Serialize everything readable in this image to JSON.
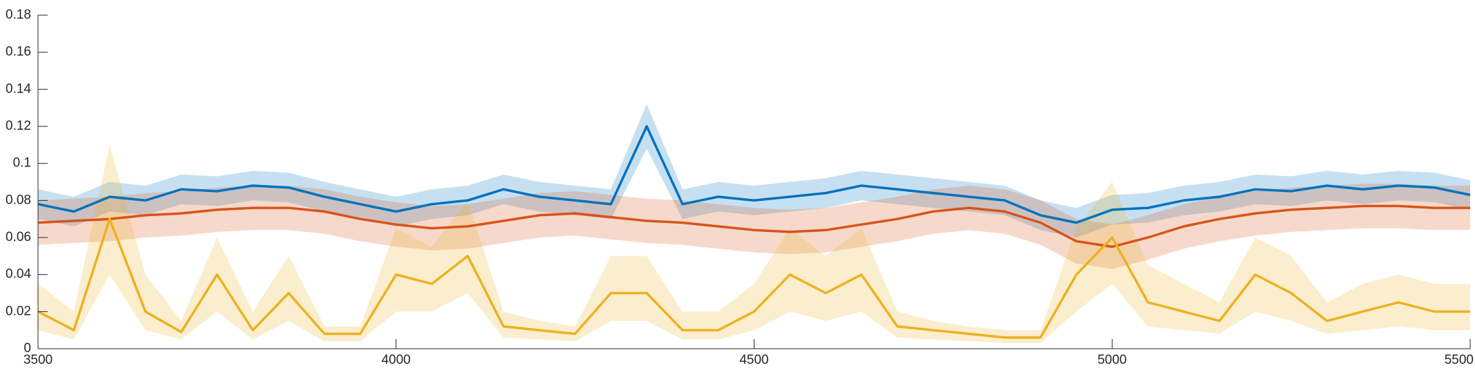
{
  "chart_data": {
    "type": "line",
    "x": [
      3500,
      3550,
      3600,
      3650,
      3700,
      3750,
      3800,
      3850,
      3900,
      3950,
      4000,
      4050,
      4100,
      4150,
      4200,
      4250,
      4300,
      4350,
      4400,
      4450,
      4500,
      4550,
      4600,
      4650,
      4700,
      4750,
      4800,
      4850,
      4900,
      4950,
      5000,
      5050,
      5100,
      5150,
      5200,
      5250,
      5300,
      5350,
      5400,
      5450,
      5500
    ],
    "xlim": [
      3500,
      5500
    ],
    "xticks": [
      3500,
      4000,
      4500,
      5000,
      5500
    ],
    "ylim": [
      0,
      0.18
    ],
    "yticks": [
      0,
      0.02,
      0.04,
      0.06,
      0.08,
      0.1,
      0.12,
      0.14,
      0.16,
      0.18
    ],
    "grid": false,
    "series": [
      {
        "color": "#0072bd",
        "values": [
          0.078,
          0.074,
          0.082,
          0.08,
          0.086,
          0.085,
          0.088,
          0.087,
          0.082,
          0.078,
          0.074,
          0.078,
          0.08,
          0.086,
          0.082,
          0.08,
          0.078,
          0.12,
          0.078,
          0.082,
          0.08,
          0.082,
          0.084,
          0.088,
          0.086,
          0.084,
          0.082,
          0.08,
          0.072,
          0.068,
          0.075,
          0.076,
          0.08,
          0.082,
          0.086,
          0.085,
          0.088,
          0.086,
          0.088,
          0.087,
          0.083
        ],
        "lower": [
          0.07,
          0.066,
          0.074,
          0.072,
          0.078,
          0.077,
          0.08,
          0.079,
          0.074,
          0.07,
          0.066,
          0.07,
          0.072,
          0.078,
          0.074,
          0.072,
          0.07,
          0.108,
          0.07,
          0.074,
          0.072,
          0.074,
          0.076,
          0.08,
          0.078,
          0.076,
          0.074,
          0.072,
          0.064,
          0.06,
          0.067,
          0.068,
          0.072,
          0.074,
          0.078,
          0.077,
          0.08,
          0.078,
          0.08,
          0.079,
          0.075
        ],
        "upper": [
          0.086,
          0.082,
          0.09,
          0.088,
          0.094,
          0.093,
          0.096,
          0.095,
          0.09,
          0.086,
          0.082,
          0.086,
          0.088,
          0.094,
          0.09,
          0.088,
          0.086,
          0.132,
          0.086,
          0.09,
          0.088,
          0.09,
          0.092,
          0.096,
          0.094,
          0.092,
          0.09,
          0.088,
          0.08,
          0.076,
          0.083,
          0.084,
          0.088,
          0.09,
          0.094,
          0.093,
          0.096,
          0.094,
          0.096,
          0.095,
          0.091
        ]
      },
      {
        "color": "#d95319",
        "values": [
          0.068,
          0.069,
          0.07,
          0.072,
          0.073,
          0.075,
          0.076,
          0.076,
          0.074,
          0.07,
          0.067,
          0.065,
          0.066,
          0.069,
          0.072,
          0.073,
          0.071,
          0.069,
          0.068,
          0.066,
          0.064,
          0.063,
          0.064,
          0.067,
          0.07,
          0.074,
          0.076,
          0.074,
          0.068,
          0.058,
          0.055,
          0.06,
          0.066,
          0.07,
          0.073,
          0.075,
          0.076,
          0.077,
          0.077,
          0.076,
          0.076
        ],
        "lower": [
          0.056,
          0.057,
          0.058,
          0.06,
          0.061,
          0.063,
          0.064,
          0.064,
          0.062,
          0.058,
          0.055,
          0.053,
          0.054,
          0.057,
          0.06,
          0.061,
          0.059,
          0.057,
          0.056,
          0.054,
          0.052,
          0.051,
          0.052,
          0.055,
          0.058,
          0.062,
          0.064,
          0.062,
          0.056,
          0.046,
          0.043,
          0.048,
          0.054,
          0.058,
          0.061,
          0.063,
          0.064,
          0.065,
          0.065,
          0.064,
          0.064
        ],
        "upper": [
          0.08,
          0.081,
          0.082,
          0.084,
          0.085,
          0.087,
          0.088,
          0.088,
          0.086,
          0.082,
          0.079,
          0.077,
          0.078,
          0.081,
          0.084,
          0.085,
          0.083,
          0.081,
          0.08,
          0.078,
          0.076,
          0.075,
          0.076,
          0.079,
          0.082,
          0.086,
          0.088,
          0.086,
          0.08,
          0.07,
          0.067,
          0.072,
          0.078,
          0.082,
          0.085,
          0.087,
          0.088,
          0.089,
          0.089,
          0.088,
          0.088
        ]
      },
      {
        "color": "#edb120",
        "values": [
          0.02,
          0.01,
          0.07,
          0.02,
          0.009,
          0.04,
          0.01,
          0.03,
          0.008,
          0.008,
          0.04,
          0.035,
          0.05,
          0.012,
          0.01,
          0.008,
          0.03,
          0.03,
          0.01,
          0.01,
          0.02,
          0.04,
          0.03,
          0.04,
          0.012,
          0.01,
          0.008,
          0.006,
          0.006,
          0.04,
          0.06,
          0.025,
          0.02,
          0.015,
          0.04,
          0.03,
          0.015,
          0.02,
          0.025,
          0.02,
          0.02
        ],
        "lower": [
          0.01,
          0.005,
          0.04,
          0.01,
          0.005,
          0.02,
          0.005,
          0.015,
          0.004,
          0.004,
          0.02,
          0.02,
          0.03,
          0.006,
          0.005,
          0.004,
          0.015,
          0.015,
          0.005,
          0.005,
          0.01,
          0.02,
          0.015,
          0.02,
          0.006,
          0.005,
          0.004,
          0.003,
          0.003,
          0.02,
          0.035,
          0.012,
          0.01,
          0.008,
          0.02,
          0.015,
          0.008,
          0.01,
          0.012,
          0.01,
          0.01
        ],
        "upper": [
          0.035,
          0.02,
          0.11,
          0.04,
          0.015,
          0.06,
          0.02,
          0.05,
          0.012,
          0.012,
          0.065,
          0.055,
          0.08,
          0.02,
          0.015,
          0.012,
          0.05,
          0.05,
          0.02,
          0.02,
          0.035,
          0.065,
          0.05,
          0.065,
          0.02,
          0.015,
          0.012,
          0.01,
          0.01,
          0.065,
          0.09,
          0.045,
          0.035,
          0.025,
          0.06,
          0.05,
          0.025,
          0.035,
          0.04,
          0.035,
          0.035
        ]
      }
    ]
  }
}
